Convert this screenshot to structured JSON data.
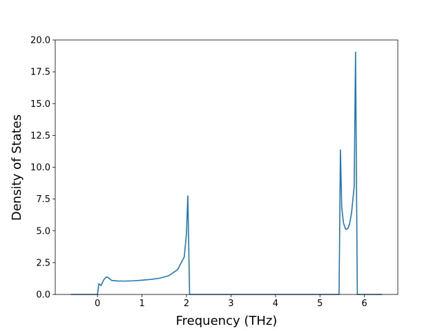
{
  "chart_data": {
    "type": "line",
    "xlabel": "Frequency (THz)",
    "ylabel": "Density of States",
    "x": [
      -0.6,
      0.0,
      0.03,
      0.08,
      0.14,
      0.2,
      0.25,
      0.32,
      0.45,
      0.6,
      0.8,
      1.0,
      1.2,
      1.4,
      1.6,
      1.8,
      1.95,
      2.0,
      2.03,
      2.07,
      3.0,
      5.43,
      5.46,
      5.49,
      5.53,
      5.58,
      5.63,
      5.67,
      5.71,
      5.77,
      5.8,
      5.84,
      6.4
    ],
    "series": [
      {
        "color": "#1f77b4",
        "values": [
          0,
          0,
          0.85,
          0.7,
          1.15,
          1.38,
          1.3,
          1.1,
          1.06,
          1.05,
          1.07,
          1.12,
          1.18,
          1.28,
          1.47,
          1.95,
          2.95,
          4.8,
          7.75,
          0,
          0,
          0,
          11.35,
          6.8,
          5.6,
          5.1,
          5.2,
          5.6,
          6.4,
          8.5,
          19.05,
          0,
          0
        ]
      }
    ],
    "xlim": [
      -0.95,
      6.75
    ],
    "ylim": [
      0,
      20
    ],
    "xticks": [
      0,
      1,
      2,
      3,
      4,
      5,
      6
    ],
    "yticks": [
      {
        "value": 0,
        "label": "0.0"
      },
      {
        "value": 2.5,
        "label": "2.5"
      },
      {
        "value": 5,
        "label": "5.0"
      },
      {
        "value": 7.5,
        "label": "7.5"
      },
      {
        "value": 10,
        "label": "10.0"
      },
      {
        "value": 12.5,
        "label": "12.5"
      },
      {
        "value": 15,
        "label": "15.0"
      },
      {
        "value": 17.5,
        "label": "17.5"
      },
      {
        "value": 20,
        "label": "20.0"
      }
    ]
  }
}
